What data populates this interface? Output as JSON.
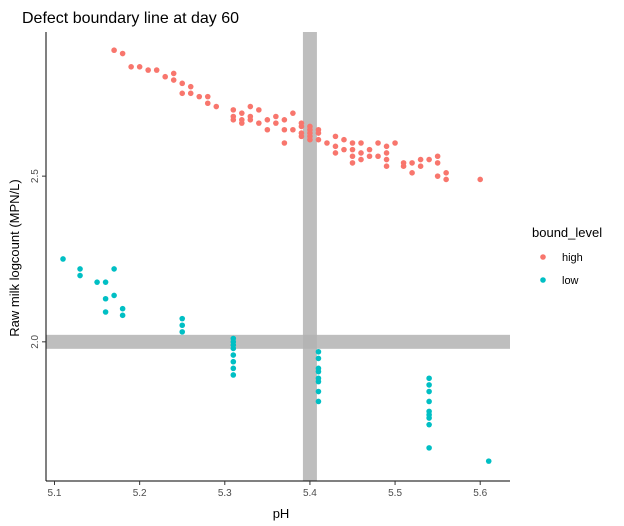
{
  "chart_data": {
    "type": "scatter",
    "title": "Defect boundary line at day 60",
    "xlabel": "pH",
    "ylabel": "Raw milk logcount (MPN/L)",
    "xlim": [
      5.09,
      5.635
    ],
    "ylim": [
      1.58,
      2.935
    ],
    "x_ticks": [
      5.1,
      5.2,
      5.3,
      5.4,
      5.5,
      5.6
    ],
    "x_tick_labels": [
      "5.1",
      "5.2",
      "5.3",
      "5.4",
      "5.5",
      "5.6"
    ],
    "y_ticks": [
      2.0,
      2.5
    ],
    "y_tick_labels": [
      "2.0",
      "2.5"
    ],
    "grid": false,
    "legend": {
      "title": "bound_level",
      "position": "right"
    },
    "boundary_lines": {
      "vertical_x": 5.4,
      "horizontal_y": 2.0,
      "color": "#b3b3b3"
    },
    "series": [
      {
        "name": "high",
        "color": "#F8766D",
        "points": [
          [
            5.17,
            2.88
          ],
          [
            5.18,
            2.87
          ],
          [
            5.19,
            2.83
          ],
          [
            5.2,
            2.83
          ],
          [
            5.21,
            2.82
          ],
          [
            5.22,
            2.82
          ],
          [
            5.23,
            2.8
          ],
          [
            5.24,
            2.81
          ],
          [
            5.24,
            2.79
          ],
          [
            5.25,
            2.78
          ],
          [
            5.25,
            2.75
          ],
          [
            5.26,
            2.75
          ],
          [
            5.26,
            2.77
          ],
          [
            5.27,
            2.74
          ],
          [
            5.28,
            2.74
          ],
          [
            5.28,
            2.72
          ],
          [
            5.29,
            2.71
          ],
          [
            5.31,
            2.7
          ],
          [
            5.31,
            2.68
          ],
          [
            5.31,
            2.67
          ],
          [
            5.32,
            2.69
          ],
          [
            5.32,
            2.66
          ],
          [
            5.32,
            2.67
          ],
          [
            5.33,
            2.71
          ],
          [
            5.33,
            2.68
          ],
          [
            5.33,
            2.67
          ],
          [
            5.34,
            2.7
          ],
          [
            5.34,
            2.66
          ],
          [
            5.35,
            2.67
          ],
          [
            5.35,
            2.64
          ],
          [
            5.36,
            2.68
          ],
          [
            5.36,
            2.66
          ],
          [
            5.37,
            2.67
          ],
          [
            5.37,
            2.64
          ],
          [
            5.37,
            2.6
          ],
          [
            5.38,
            2.69
          ],
          [
            5.38,
            2.64
          ],
          [
            5.39,
            2.63
          ],
          [
            5.39,
            2.62
          ],
          [
            5.39,
            2.65
          ],
          [
            5.39,
            2.66
          ],
          [
            5.4,
            2.65
          ],
          [
            5.4,
            2.63
          ],
          [
            5.4,
            2.62
          ],
          [
            5.4,
            2.61
          ],
          [
            5.4,
            2.64
          ],
          [
            5.41,
            2.63
          ],
          [
            5.41,
            2.64
          ],
          [
            5.41,
            2.61
          ],
          [
            5.42,
            2.6
          ],
          [
            5.43,
            2.62
          ],
          [
            5.43,
            2.59
          ],
          [
            5.43,
            2.57
          ],
          [
            5.44,
            2.61
          ],
          [
            5.44,
            2.58
          ],
          [
            5.45,
            2.6
          ],
          [
            5.45,
            2.58
          ],
          [
            5.45,
            2.56
          ],
          [
            5.45,
            2.54
          ],
          [
            5.46,
            2.6
          ],
          [
            5.46,
            2.57
          ],
          [
            5.46,
            2.55
          ],
          [
            5.47,
            2.58
          ],
          [
            5.47,
            2.56
          ],
          [
            5.48,
            2.6
          ],
          [
            5.48,
            2.56
          ],
          [
            5.49,
            2.59
          ],
          [
            5.49,
            2.57
          ],
          [
            5.49,
            2.55
          ],
          [
            5.49,
            2.53
          ],
          [
            5.5,
            2.6
          ],
          [
            5.51,
            2.54
          ],
          [
            5.51,
            2.53
          ],
          [
            5.52,
            2.54
          ],
          [
            5.52,
            2.51
          ],
          [
            5.53,
            2.53
          ],
          [
            5.53,
            2.55
          ],
          [
            5.54,
            2.55
          ],
          [
            5.55,
            2.56
          ],
          [
            5.55,
            2.54
          ],
          [
            5.55,
            2.5
          ],
          [
            5.56,
            2.51
          ],
          [
            5.56,
            2.49
          ],
          [
            5.6,
            2.49
          ]
        ]
      },
      {
        "name": "low",
        "color": "#00BFC4",
        "points": [
          [
            5.11,
            2.25
          ],
          [
            5.13,
            2.22
          ],
          [
            5.13,
            2.2
          ],
          [
            5.15,
            2.18
          ],
          [
            5.16,
            2.18
          ],
          [
            5.16,
            2.13
          ],
          [
            5.16,
            2.09
          ],
          [
            5.17,
            2.22
          ],
          [
            5.17,
            2.14
          ],
          [
            5.18,
            2.1
          ],
          [
            5.18,
            2.08
          ],
          [
            5.25,
            2.07
          ],
          [
            5.25,
            2.05
          ],
          [
            5.25,
            2.03
          ],
          [
            5.31,
            2.01
          ],
          [
            5.31,
            2.0
          ],
          [
            5.31,
            1.99
          ],
          [
            5.31,
            1.98
          ],
          [
            5.31,
            1.96
          ],
          [
            5.31,
            1.94
          ],
          [
            5.31,
            1.92
          ],
          [
            5.31,
            1.9
          ],
          [
            5.41,
            1.97
          ],
          [
            5.41,
            1.95
          ],
          [
            5.41,
            1.92
          ],
          [
            5.41,
            1.91
          ],
          [
            5.41,
            1.89
          ],
          [
            5.41,
            1.88
          ],
          [
            5.41,
            1.85
          ],
          [
            5.41,
            1.82
          ],
          [
            5.54,
            1.89
          ],
          [
            5.54,
            1.87
          ],
          [
            5.54,
            1.85
          ],
          [
            5.54,
            1.82
          ],
          [
            5.54,
            1.79
          ],
          [
            5.54,
            1.78
          ],
          [
            5.54,
            1.77
          ],
          [
            5.54,
            1.75
          ],
          [
            5.54,
            1.68
          ],
          [
            5.61,
            1.64
          ]
        ]
      }
    ]
  }
}
